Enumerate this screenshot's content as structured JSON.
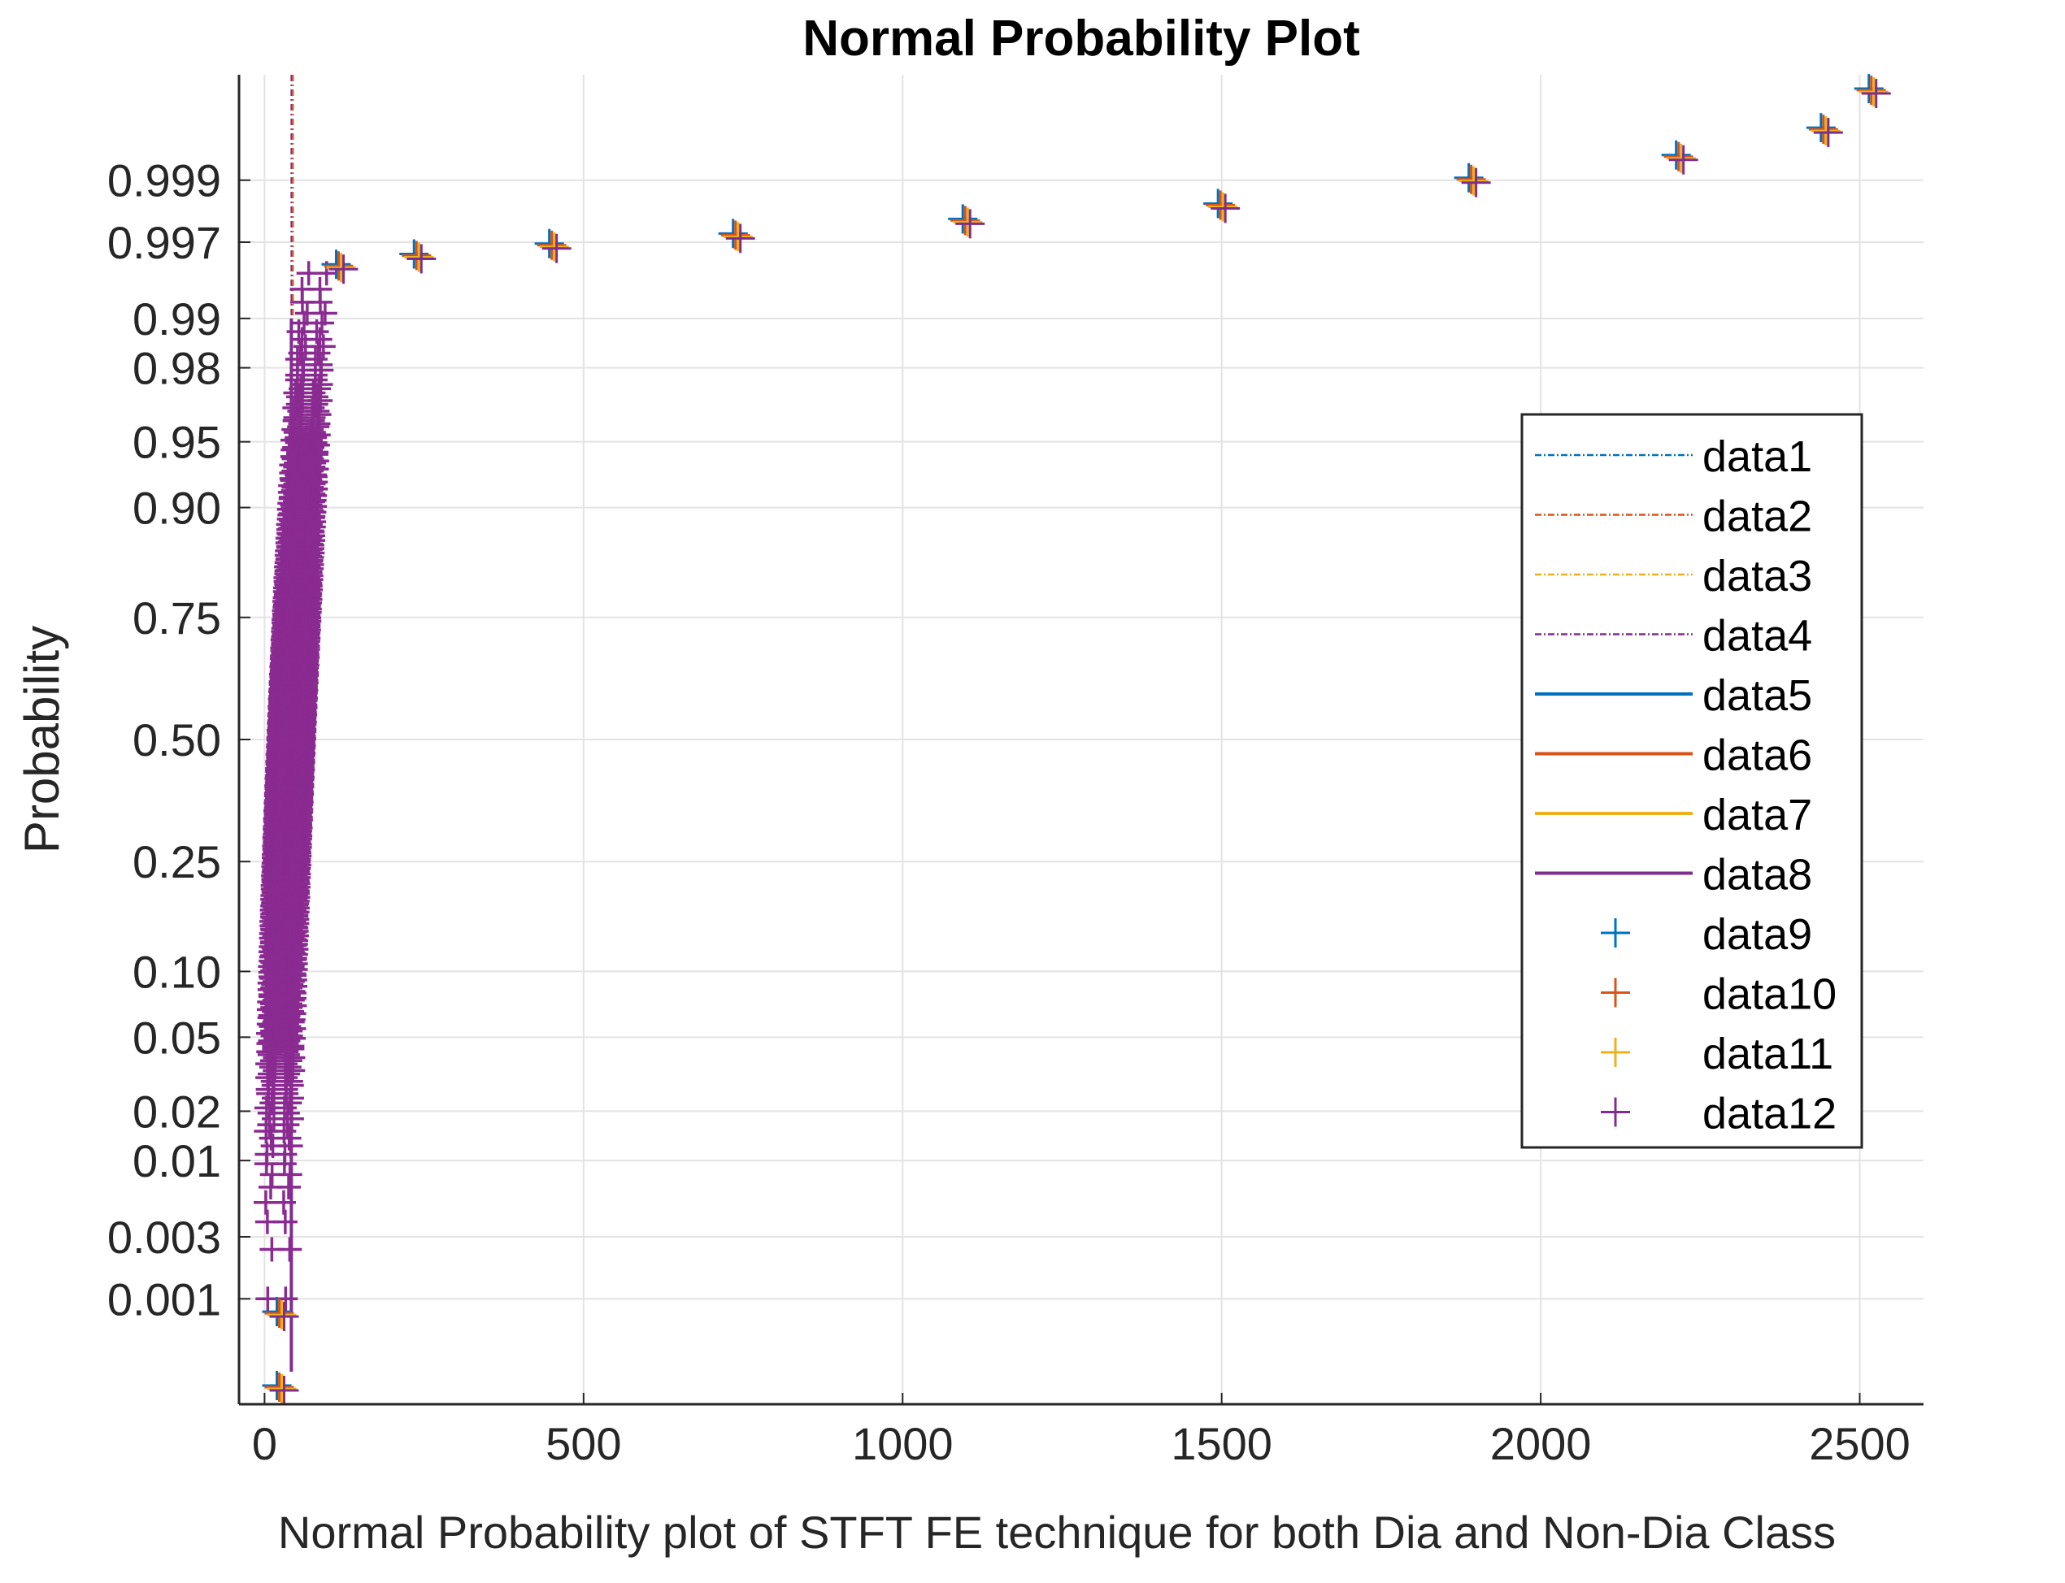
{
  "chart_data": {
    "type": "scatter",
    "title": "Normal Probability Plot",
    "xlabel": "Normal Probability plot of STFT FE technique for both Dia and Non-Dia Class",
    "ylabel": "Probability",
    "scale": "normal-probability",
    "grid": true,
    "legend_position": "right",
    "xlim": [
      -40,
      2600
    ],
    "x_ticks": [
      0,
      500,
      1000,
      1500,
      2000,
      2500
    ],
    "x_tick_labels": [
      "0",
      "500",
      "1000",
      "1500",
      "2000",
      "2500"
    ],
    "y_ticks": [
      0.001,
      0.003,
      0.01,
      0.02,
      0.05,
      0.1,
      0.25,
      0.5,
      0.75,
      0.9,
      0.95,
      0.98,
      0.99,
      0.997,
      0.999
    ],
    "y_tick_labels": [
      "0.001",
      "0.003",
      "0.01",
      "0.02",
      "0.05",
      "0.10",
      "0.25",
      "0.50",
      "0.75",
      "0.90",
      "0.95",
      "0.98",
      "0.99",
      "0.997",
      "0.999"
    ],
    "legend": [
      {
        "name": "data1",
        "style": "dashdot",
        "color": "#0072BD"
      },
      {
        "name": "data2",
        "style": "dashdot",
        "color": "#D95319"
      },
      {
        "name": "data3",
        "style": "dashdot",
        "color": "#EDB120"
      },
      {
        "name": "data4",
        "style": "dashdot",
        "color": "#7E2F8E"
      },
      {
        "name": "data5",
        "style": "solid",
        "color": "#0072BD"
      },
      {
        "name": "data6",
        "style": "solid",
        "color": "#D95319"
      },
      {
        "name": "data7",
        "style": "solid",
        "color": "#EDB120"
      },
      {
        "name": "data8",
        "style": "solid",
        "color": "#7E2F8E"
      },
      {
        "name": "data9",
        "style": "plus",
        "color": "#0072BD"
      },
      {
        "name": "data10",
        "style": "plus",
        "color": "#D95319"
      },
      {
        "name": "data11",
        "style": "plus",
        "color": "#EDB120"
      },
      {
        "name": "data12",
        "style": "plus",
        "color": "#7E2F8E"
      }
    ],
    "tail_points": [
      {
        "x": 25,
        "p": 0.00017
      },
      {
        "x": 25,
        "p": 0.00075
      },
      {
        "x": 118,
        "p": 0.9955
      },
      {
        "x": 240,
        "p": 0.9962
      },
      {
        "x": 452,
        "p": 0.9968
      },
      {
        "x": 740,
        "p": 0.9973
      },
      {
        "x": 1100,
        "p": 0.9979
      },
      {
        "x": 1500,
        "p": 0.9984
      },
      {
        "x": 1893,
        "p": 0.999
      },
      {
        "x": 2218,
        "p": 0.99935
      },
      {
        "x": 2445,
        "p": 0.99962
      },
      {
        "x": 2520,
        "p": 0.99983
      }
    ],
    "bulk_distribution": {
      "p_min": 0.001,
      "p_max": 0.995,
      "x_low": 5,
      "x_high": 65
    },
    "reference_line_x": 42
  }
}
